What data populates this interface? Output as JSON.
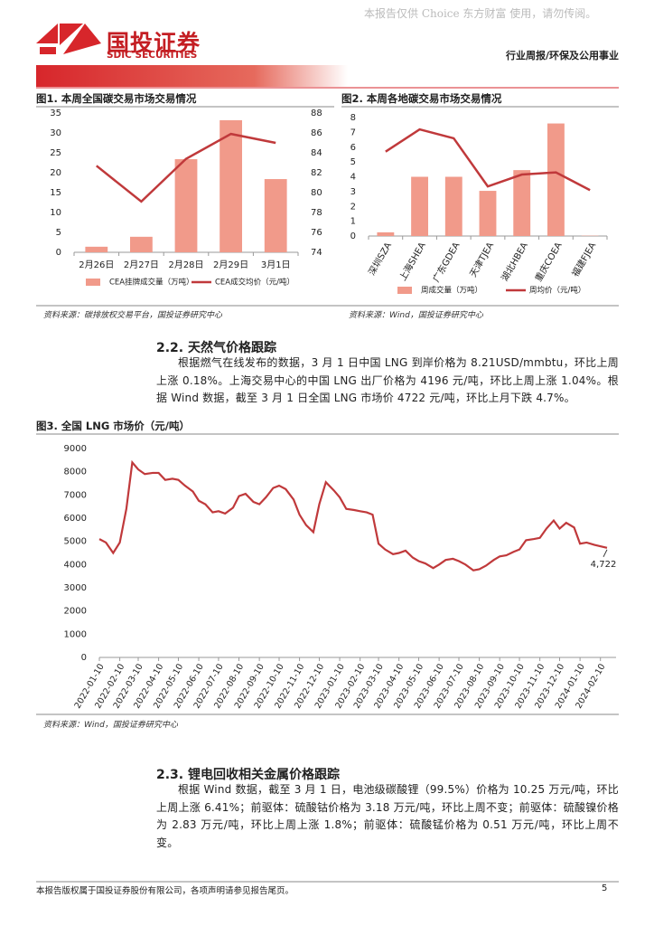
{
  "header": {
    "watermark": "本报告仅供 Choice 东方财富 使用，请勿传阅。",
    "logo_cn": "国投证券",
    "logo_en": "SDIC SECURITIES",
    "category": "行业周报/环保及公用事业"
  },
  "chart_data": [
    {
      "type": "combo",
      "title": "图1. 本周全国碳交易市场交易情况",
      "source": "资料来源：碳排放权交易平台，国投证券研究中心",
      "categories": [
        "2月26日",
        "2月27日",
        "2月28日",
        "2月29日",
        "3月1日"
      ],
      "series": [
        {
          "name": "CEA挂牌成交量（万吨）",
          "type": "bar",
          "color": "#f19a8a",
          "values": [
            1.4,
            3.9,
            23.4,
            33.2,
            18.4
          ]
        },
        {
          "name": "CEA成交均价（元/吨）",
          "type": "line",
          "axis": "y2",
          "color": "#c0393b",
          "values": [
            82.7,
            79.1,
            83.4,
            85.9,
            85.0
          ]
        }
      ],
      "ylim": [
        0,
        35
      ],
      "yticks": [
        0,
        5,
        10,
        15,
        20,
        25,
        30,
        35
      ],
      "y2lim": [
        74,
        88
      ],
      "y2ticks": [
        74,
        76,
        78,
        80,
        82,
        84,
        86,
        88
      ]
    },
    {
      "type": "combo",
      "title": "图2. 本周各地碳交易市场交易情况",
      "source": "资料来源：Wind，国投证券研究中心",
      "categories": [
        "深圳SZA",
        "上海SHEA",
        "广东GDEA",
        "天津TJEA",
        "湖北HBEA",
        "重庆COEA",
        "福建FJEA"
      ],
      "series": [
        {
          "name": "周成交量（万吨）",
          "type": "bar",
          "color": "#f19a8a",
          "values": [
            0.25,
            4.0,
            4.0,
            3.05,
            4.45,
            7.6,
            0.02
          ]
        },
        {
          "name": "周均价（元/吨）",
          "type": "line",
          "color": "#c0393b",
          "values": [
            5.7,
            7.2,
            6.6,
            3.35,
            4.15,
            4.3,
            3.1
          ]
        }
      ],
      "ylim": [
        0,
        8
      ],
      "yticks": [
        0,
        1,
        2,
        3,
        4,
        5,
        6,
        7,
        8
      ]
    },
    {
      "type": "line",
      "title": "图3. 全国 LNG 市场价（元/吨）",
      "source": "资料来源：Wind，国投证券研究中心",
      "x": [
        "2022-01-10",
        "2022-01-20",
        "2022-01-31",
        "2022-02-10",
        "2022-02-20",
        "2022-03-01",
        "2022-03-10",
        "2022-03-20",
        "2022-04-01",
        "2022-04-10",
        "2022-04-20",
        "2022-05-01",
        "2022-05-10",
        "2022-05-20",
        "2022-06-01",
        "2022-06-10",
        "2022-06-20",
        "2022-07-01",
        "2022-07-10",
        "2022-07-20",
        "2022-08-01",
        "2022-08-10",
        "2022-08-20",
        "2022-09-01",
        "2022-09-10",
        "2022-09-20",
        "2022-10-01",
        "2022-10-10",
        "2022-10-20",
        "2022-11-01",
        "2022-11-10",
        "2022-11-20",
        "2022-12-01",
        "2022-12-10",
        "2022-12-20",
        "2023-01-01",
        "2023-01-10",
        "2023-01-20",
        "2023-02-01",
        "2023-02-10",
        "2023-02-20",
        "2023-03-01",
        "2023-03-10",
        "2023-03-20",
        "2023-04-01",
        "2023-04-10",
        "2023-04-20",
        "2023-05-01",
        "2023-05-10",
        "2023-05-20",
        "2023-06-01",
        "2023-06-10",
        "2023-06-20",
        "2023-07-01",
        "2023-07-10",
        "2023-07-20",
        "2023-08-01",
        "2023-08-10",
        "2023-08-20",
        "2023-09-01",
        "2023-09-10",
        "2023-09-20",
        "2023-10-01",
        "2023-10-10",
        "2023-10-20",
        "2023-11-01",
        "2023-11-10",
        "2023-11-20",
        "2023-12-01",
        "2023-12-10",
        "2023-12-20",
        "2024-01-01",
        "2024-01-10",
        "2024-01-20",
        "2024-02-01",
        "2024-02-20"
      ],
      "series": [
        {
          "name": "LNG市场价",
          "color": "#c0393b",
          "values": [
            5100,
            4950,
            4500,
            4950,
            6400,
            8400,
            8100,
            7900,
            7950,
            7950,
            7650,
            7700,
            7650,
            7400,
            7150,
            6750,
            6600,
            6250,
            6300,
            6200,
            6450,
            6950,
            7050,
            6700,
            6600,
            6900,
            7300,
            7400,
            7250,
            6800,
            6150,
            5700,
            5400,
            6600,
            7550,
            7200,
            6900,
            6400,
            6350,
            6300,
            6250,
            6150,
            4900,
            4650,
            4450,
            4500,
            4600,
            4300,
            4150,
            4050,
            3850,
            4000,
            4200,
            4250,
            4150,
            4000,
            3750,
            3800,
            3950,
            4200,
            4350,
            4400,
            4550,
            4650,
            5050,
            5100,
            5150,
            5550,
            5900,
            5550,
            5800,
            5600,
            4900,
            4950,
            4850,
            4722
          ],
          "value_labels": [
            null,
            null,
            null,
            null,
            null,
            null,
            null,
            null,
            null,
            null,
            null,
            null,
            null,
            null,
            null,
            null,
            null,
            null,
            null,
            null,
            null,
            null,
            null,
            null,
            null,
            null,
            null,
            null,
            null,
            null,
            null,
            null,
            null,
            null,
            null,
            null,
            null,
            null,
            null,
            null,
            null,
            null,
            null,
            null,
            null,
            null,
            null,
            null,
            null,
            null,
            null,
            null,
            null,
            null,
            null,
            null,
            null,
            null,
            null,
            null,
            null,
            null,
            null,
            null,
            null,
            null,
            null,
            null,
            null,
            null,
            null,
            null,
            null,
            null,
            null,
            "4,722"
          ]
        }
      ],
      "xlim": [
        "2022-01-10",
        "2024-02-20"
      ],
      "xticks": [
        "2022-01-10",
        "2022-02-10",
        "2022-03-10",
        "2022-04-10",
        "2022-05-10",
        "2022-06-10",
        "2022-07-10",
        "2022-08-10",
        "2022-09-10",
        "2022-10-10",
        "2022-11-10",
        "2022-12-10",
        "2023-01-10",
        "2023-02-10",
        "2023-03-10",
        "2023-04-10",
        "2023-05-10",
        "2023-06-10",
        "2023-07-10",
        "2023-08-10",
        "2023-09-10",
        "2023-10-10",
        "2023-11-10",
        "2023-12-10",
        "2024-01-10",
        "2024-02-10"
      ],
      "ylim": [
        0,
        9000
      ],
      "yticks": [
        0,
        1000,
        2000,
        3000,
        4000,
        5000,
        6000,
        7000,
        8000,
        9000
      ]
    }
  ],
  "sections": [
    {
      "heading": "2.2. 天然气价格跟踪",
      "paragraph": "根据燃气在线发布的数据，3 月 1 日中国 LNG 到岸价格为 8.21USD/mmbtu，环比上周上涨 0.18%。上海交易中心的中国 LNG 出厂价格为 4196 元/吨，环比上周上涨 1.04%。根据 Wind 数据，截至 3 月 1 日全国 LNG 市场价 4722 元/吨，环比上月下跌 4.7%。"
    },
    {
      "heading": "2.3. 锂电回收相关金属价格跟踪",
      "paragraph": "根据 Wind 数据，截至 3 月 1 日，电池级碳酸锂（99.5%）价格为 10.25 万元/吨，环比上周上涨 6.41%；前驱体：硫酸钴价格为 3.18 万元/吨，环比上周不变；前驱体：硫酸镍价格为 2.83 万元/吨，环比上周上涨 1.8%；前驱体：硫酸锰价格为 0.51 万元/吨，环比上周不变。"
    }
  ],
  "footer": {
    "disclaimer": "本报告版权属于国投证券股份有限公司，各项声明请参见报告尾页。",
    "page": "5"
  }
}
